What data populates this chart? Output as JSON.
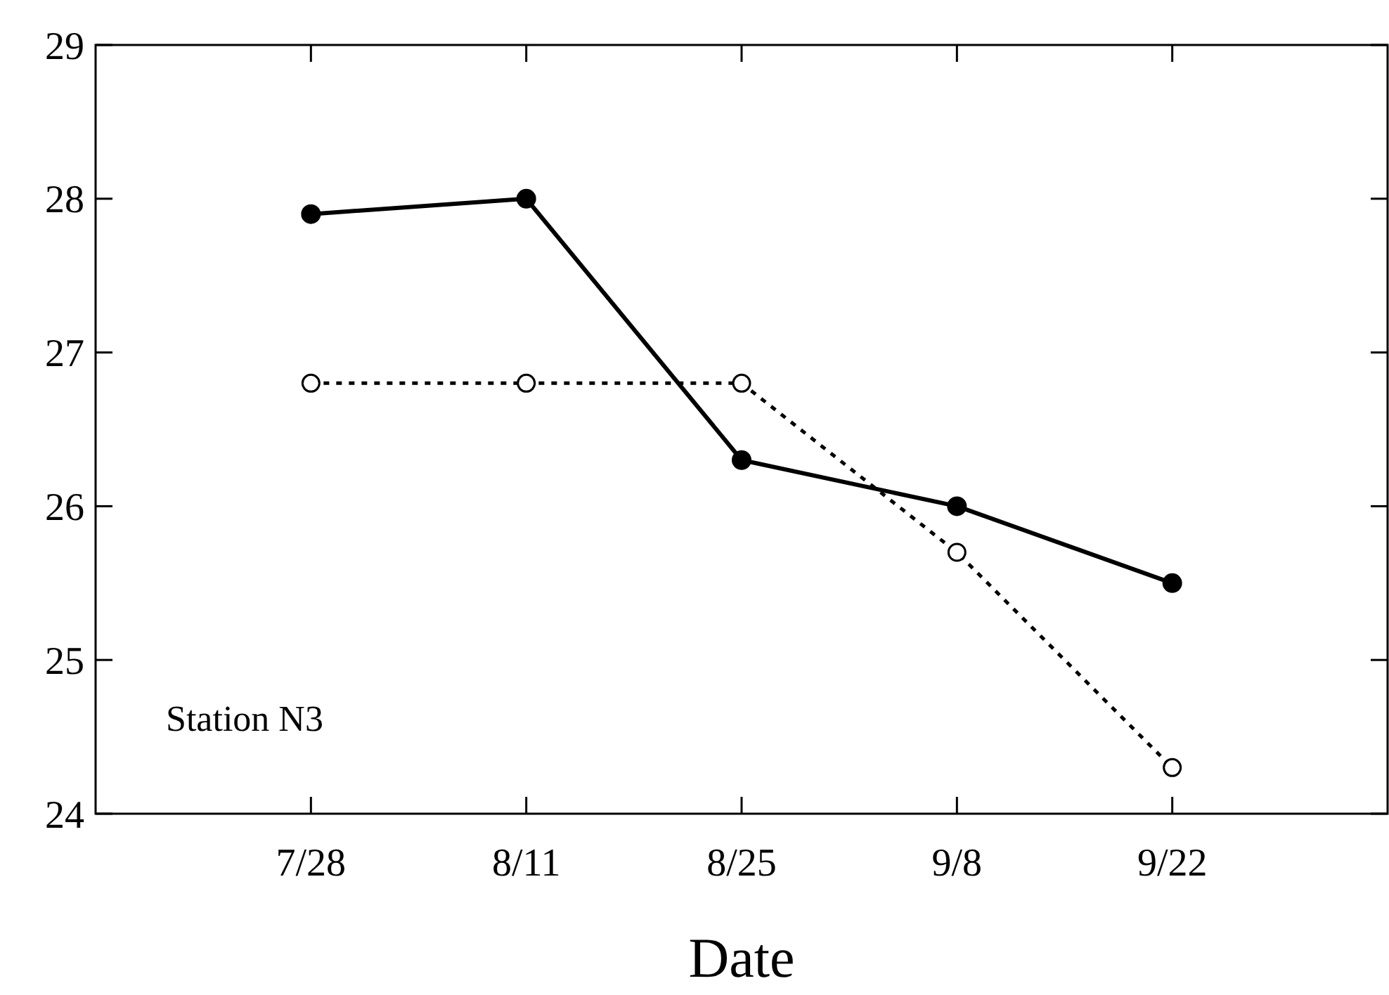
{
  "chart_data": {
    "type": "line",
    "xlabel": "Date",
    "categories": [
      "7/28",
      "8/11",
      "8/25",
      "9/8",
      "9/22"
    ],
    "series": [
      {
        "color": "#000000",
        "line_style": "solid",
        "marker": "circle",
        "values": [
          27.9,
          28.0,
          26.3,
          26.0,
          25.5
        ]
      },
      {
        "color": "#000000",
        "line_style": "dotted",
        "marker": "circle",
        "values": [
          26.8,
          26.8,
          26.8,
          25.7,
          24.3
        ]
      }
    ],
    "ylim": [
      24,
      29
    ],
    "yticks": [
      24,
      25,
      26,
      27,
      28,
      29
    ],
    "annotations": [
      "Station N3"
    ]
  }
}
